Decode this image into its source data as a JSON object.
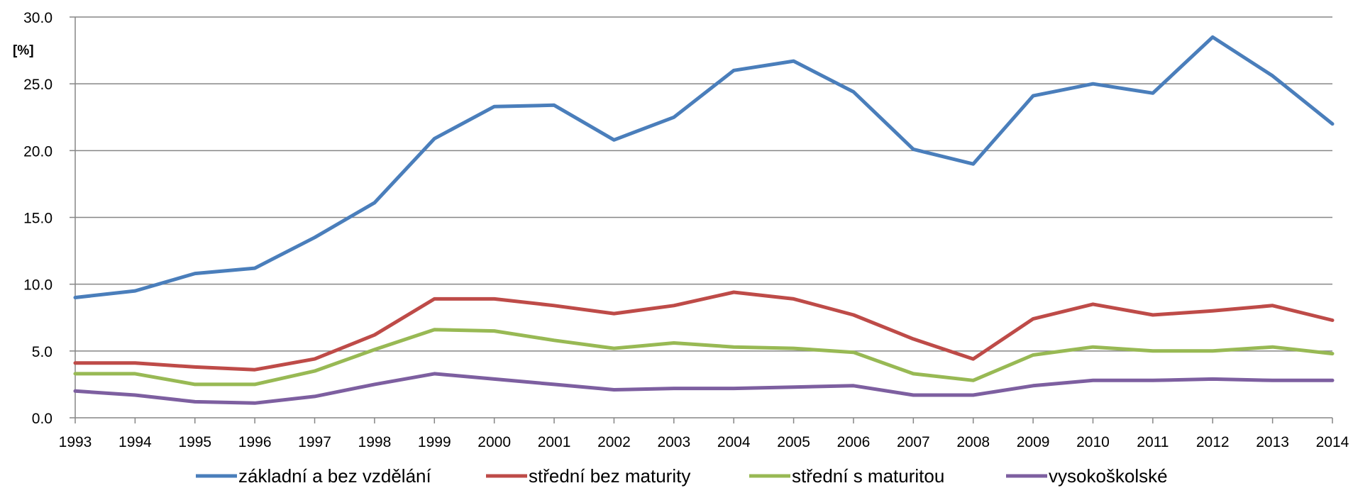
{
  "chart_data": {
    "type": "line",
    "ylabel": "[%]",
    "ylim": [
      0,
      30
    ],
    "y_ticks": [
      "0.0",
      "5.0",
      "10.0",
      "15.0",
      "20.0",
      "25.0",
      "30.0"
    ],
    "grid": true,
    "legend_position": "bottom",
    "categories": [
      "1993",
      "1994",
      "1995",
      "1996",
      "1997",
      "1998",
      "1999",
      "2000",
      "2001",
      "2002",
      "2003",
      "2004",
      "2005",
      "2006",
      "2007",
      "2008",
      "2009",
      "2010",
      "2011",
      "2012",
      "2013",
      "2014"
    ],
    "series": [
      {
        "name": "základní a bez vzdělání",
        "color": "#4a7ebb",
        "values": [
          9.0,
          9.5,
          10.8,
          11.2,
          13.5,
          16.1,
          20.9,
          23.3,
          23.4,
          20.8,
          22.5,
          26.0,
          26.7,
          24.4,
          20.1,
          19.0,
          24.1,
          25.0,
          24.3,
          28.5,
          25.6,
          22.0
        ]
      },
      {
        "name": "střední bez maturity",
        "color": "#be4b48",
        "values": [
          4.1,
          4.1,
          3.8,
          3.6,
          4.4,
          6.2,
          8.9,
          8.9,
          8.4,
          7.8,
          8.4,
          9.4,
          8.9,
          7.7,
          5.9,
          4.4,
          7.4,
          8.5,
          7.7,
          8.0,
          8.4,
          7.3
        ]
      },
      {
        "name": "střední s maturitou",
        "color": "#98b954",
        "values": [
          3.3,
          3.3,
          2.5,
          2.5,
          3.5,
          5.1,
          6.6,
          6.5,
          5.8,
          5.2,
          5.6,
          5.3,
          5.2,
          4.9,
          3.3,
          2.8,
          4.7,
          5.3,
          5.0,
          5.0,
          5.3,
          4.8
        ]
      },
      {
        "name": "vysokoškolské",
        "color": "#7d5fa0",
        "values": [
          2.0,
          1.7,
          1.2,
          1.1,
          1.6,
          2.5,
          3.3,
          2.9,
          2.5,
          2.1,
          2.2,
          2.2,
          2.3,
          2.4,
          1.7,
          1.7,
          2.4,
          2.8,
          2.8,
          2.9,
          2.8,
          2.8
        ]
      }
    ]
  }
}
